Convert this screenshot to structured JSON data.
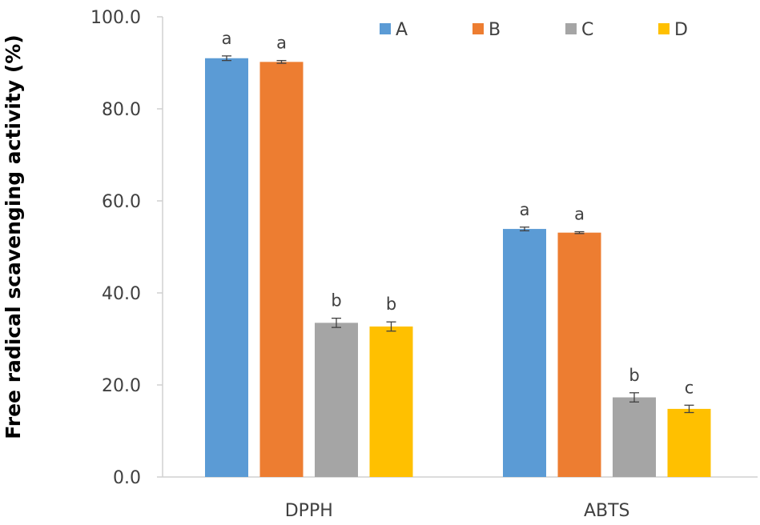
{
  "chart_data": {
    "type": "bar",
    "title": "",
    "xlabel": "",
    "ylabel": "Free radical scavenging activity (%)",
    "ylim": [
      0,
      100
    ],
    "yticks": [
      "0.0",
      "20.0",
      "40.0",
      "60.0",
      "80.0",
      "100.0"
    ],
    "ytick_values": [
      0,
      20,
      40,
      60,
      80,
      100
    ],
    "categories": [
      "DPPH",
      "ABTS"
    ],
    "legend_position": "top-right",
    "series": [
      {
        "name": "A",
        "color": "#5B9BD5",
        "values": [
          91.0,
          53.9
        ],
        "errors": [
          0.5,
          0.4
        ],
        "letters": [
          "a",
          "a"
        ]
      },
      {
        "name": "B",
        "color": "#ED7D31",
        "values": [
          90.2,
          53.1
        ],
        "errors": [
          0.3,
          0.2
        ],
        "letters": [
          "a",
          "a"
        ]
      },
      {
        "name": "C",
        "color": "#A5A5A5",
        "values": [
          33.5,
          17.3
        ],
        "errors": [
          1.0,
          1.0
        ],
        "letters": [
          "b",
          "b"
        ]
      },
      {
        "name": "D",
        "color": "#FFC000",
        "values": [
          32.7,
          14.8
        ],
        "errors": [
          1.0,
          0.8
        ],
        "letters": [
          "b",
          "c"
        ]
      }
    ]
  }
}
